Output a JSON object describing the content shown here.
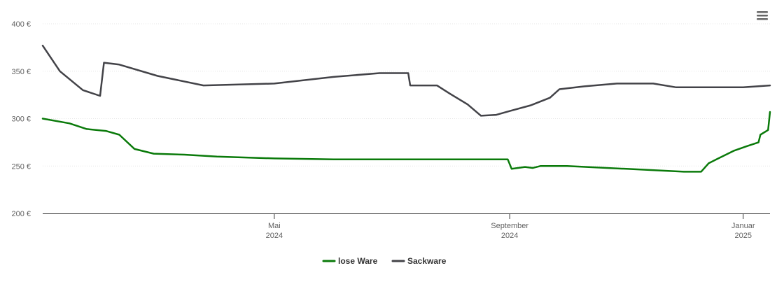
{
  "chart_data": {
    "type": "line",
    "title": "",
    "xlabel": "",
    "ylabel": "",
    "ylim": [
      200,
      400
    ],
    "y_ticks": [
      {
        "value": 200,
        "label": "200 €"
      },
      {
        "value": 250,
        "label": "250 €"
      },
      {
        "value": 300,
        "label": "300 €"
      },
      {
        "value": 350,
        "label": "350 €"
      },
      {
        "value": 400,
        "label": "400 €"
      }
    ],
    "xlim": [
      "2024-01-01",
      "2025-01-15"
    ],
    "x_ticks": [
      {
        "date": "2024-05-01",
        "line1": "Mai",
        "line2": "2024"
      },
      {
        "date": "2024-09-01",
        "line1": "September",
        "line2": "2024"
      },
      {
        "date": "2025-01-01",
        "line1": "Januar",
        "line2": "2025"
      }
    ],
    "grid": true,
    "legend_position": "bottom-center",
    "series": [
      {
        "name": "lose Ware",
        "color": "#0a7a0a",
        "points": [
          [
            "2024-01-01",
            300
          ],
          [
            "2024-01-15",
            295
          ],
          [
            "2024-01-24",
            289
          ],
          [
            "2024-02-03",
            287
          ],
          [
            "2024-02-10",
            283
          ],
          [
            "2024-02-18",
            268
          ],
          [
            "2024-02-28",
            263
          ],
          [
            "2024-03-15",
            262
          ],
          [
            "2024-04-01",
            260
          ],
          [
            "2024-05-01",
            258
          ],
          [
            "2024-06-01",
            257
          ],
          [
            "2024-07-01",
            257
          ],
          [
            "2024-08-01",
            257
          ],
          [
            "2024-08-31",
            257
          ],
          [
            "2024-09-02",
            247
          ],
          [
            "2024-09-09",
            249
          ],
          [
            "2024-09-13",
            248
          ],
          [
            "2024-09-17",
            250
          ],
          [
            "2024-10-01",
            250
          ],
          [
            "2024-11-01",
            247
          ],
          [
            "2024-12-01",
            244
          ],
          [
            "2024-12-10",
            244
          ],
          [
            "2024-12-14",
            253
          ],
          [
            "2024-12-18",
            257
          ],
          [
            "2024-12-27",
            266
          ],
          [
            "2025-01-03",
            271
          ],
          [
            "2025-01-09",
            275
          ],
          [
            "2025-01-10",
            283
          ],
          [
            "2025-01-14",
            288
          ],
          [
            "2025-01-15",
            307
          ]
        ]
      },
      {
        "name": "Sackware",
        "color": "#434348",
        "points": [
          [
            "2024-01-01",
            377
          ],
          [
            "2024-01-10",
            350
          ],
          [
            "2024-01-22",
            330
          ],
          [
            "2024-01-31",
            324
          ],
          [
            "2024-02-02",
            359
          ],
          [
            "2024-02-10",
            357
          ],
          [
            "2024-03-01",
            345
          ],
          [
            "2024-03-25",
            335
          ],
          [
            "2024-05-01",
            337
          ],
          [
            "2024-06-01",
            344
          ],
          [
            "2024-06-25",
            348
          ],
          [
            "2024-07-10",
            348
          ],
          [
            "2024-07-11",
            335
          ],
          [
            "2024-07-25",
            335
          ],
          [
            "2024-08-01",
            326
          ],
          [
            "2024-08-10",
            315
          ],
          [
            "2024-08-17",
            303
          ],
          [
            "2024-08-25",
            304
          ],
          [
            "2024-09-01",
            308
          ],
          [
            "2024-09-12",
            314
          ],
          [
            "2024-09-22",
            322
          ],
          [
            "2024-09-27",
            331
          ],
          [
            "2024-10-10",
            334
          ],
          [
            "2024-10-27",
            337
          ],
          [
            "2024-11-15",
            337
          ],
          [
            "2024-11-27",
            333
          ],
          [
            "2025-01-01",
            333
          ],
          [
            "2025-01-15",
            335
          ]
        ]
      }
    ]
  },
  "menu": {
    "icon": "hamburger-menu-icon"
  }
}
